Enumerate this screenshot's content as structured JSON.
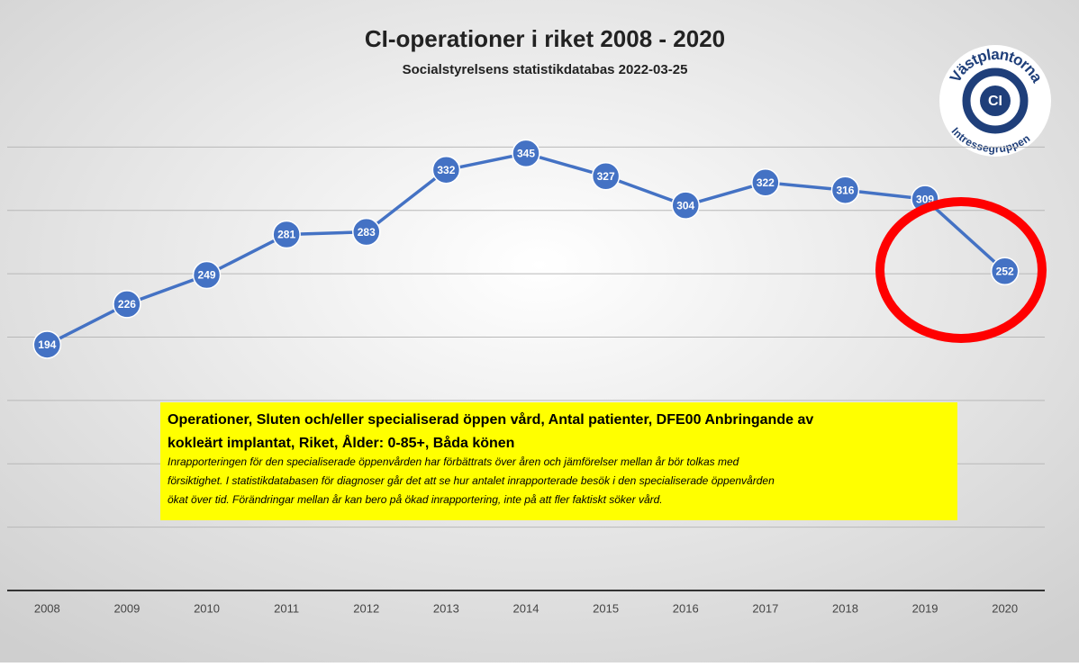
{
  "chart_data": {
    "type": "line",
    "title": "CI-operationer i riket 2008 - 2020",
    "subtitle": "Socialstyrelsens statistikdatabas 2022-03-25",
    "categories": [
      "2008",
      "2009",
      "2010",
      "2011",
      "2012",
      "2013",
      "2014",
      "2015",
      "2016",
      "2017",
      "2018",
      "2019",
      "2020"
    ],
    "series": [
      {
        "name": "CI-operationer",
        "color": "#4472c4",
        "values": [
          194,
          226,
          249,
          281,
          283,
          332,
          345,
          327,
          304,
          322,
          316,
          309,
          252
        ]
      }
    ],
    "ylim": [
      0,
      400
    ],
    "yticks": [
      0,
      50,
      100,
      150,
      200,
      250,
      300,
      350
    ],
    "grid": true,
    "note": {
      "heading": [
        "Operationer, Sluten och/eller specialiserad öppen vård, Antal patienter, DFE00 Anbringande av",
        "kokleärt implantat, Riket, Ålder: 0-85+, Båda könen"
      ],
      "body": [
        "Inrapporteringen för den specialiserade öppenvården har förbättrats över åren och jämförelser mellan år bör tolkas med",
        "försiktighet. I statistikdatabasen för diagnoser går det att se hur antalet inrapporterade besök i den specialiserade öppenvården",
        "ökat över tid. Förändringar mellan år kan bero på ökad inrapportering, inte på att fler faktiskt söker vård."
      ]
    },
    "logo": {
      "top": "Västplantorna",
      "center": "CI",
      "bottom": "Intressegruppen"
    }
  }
}
